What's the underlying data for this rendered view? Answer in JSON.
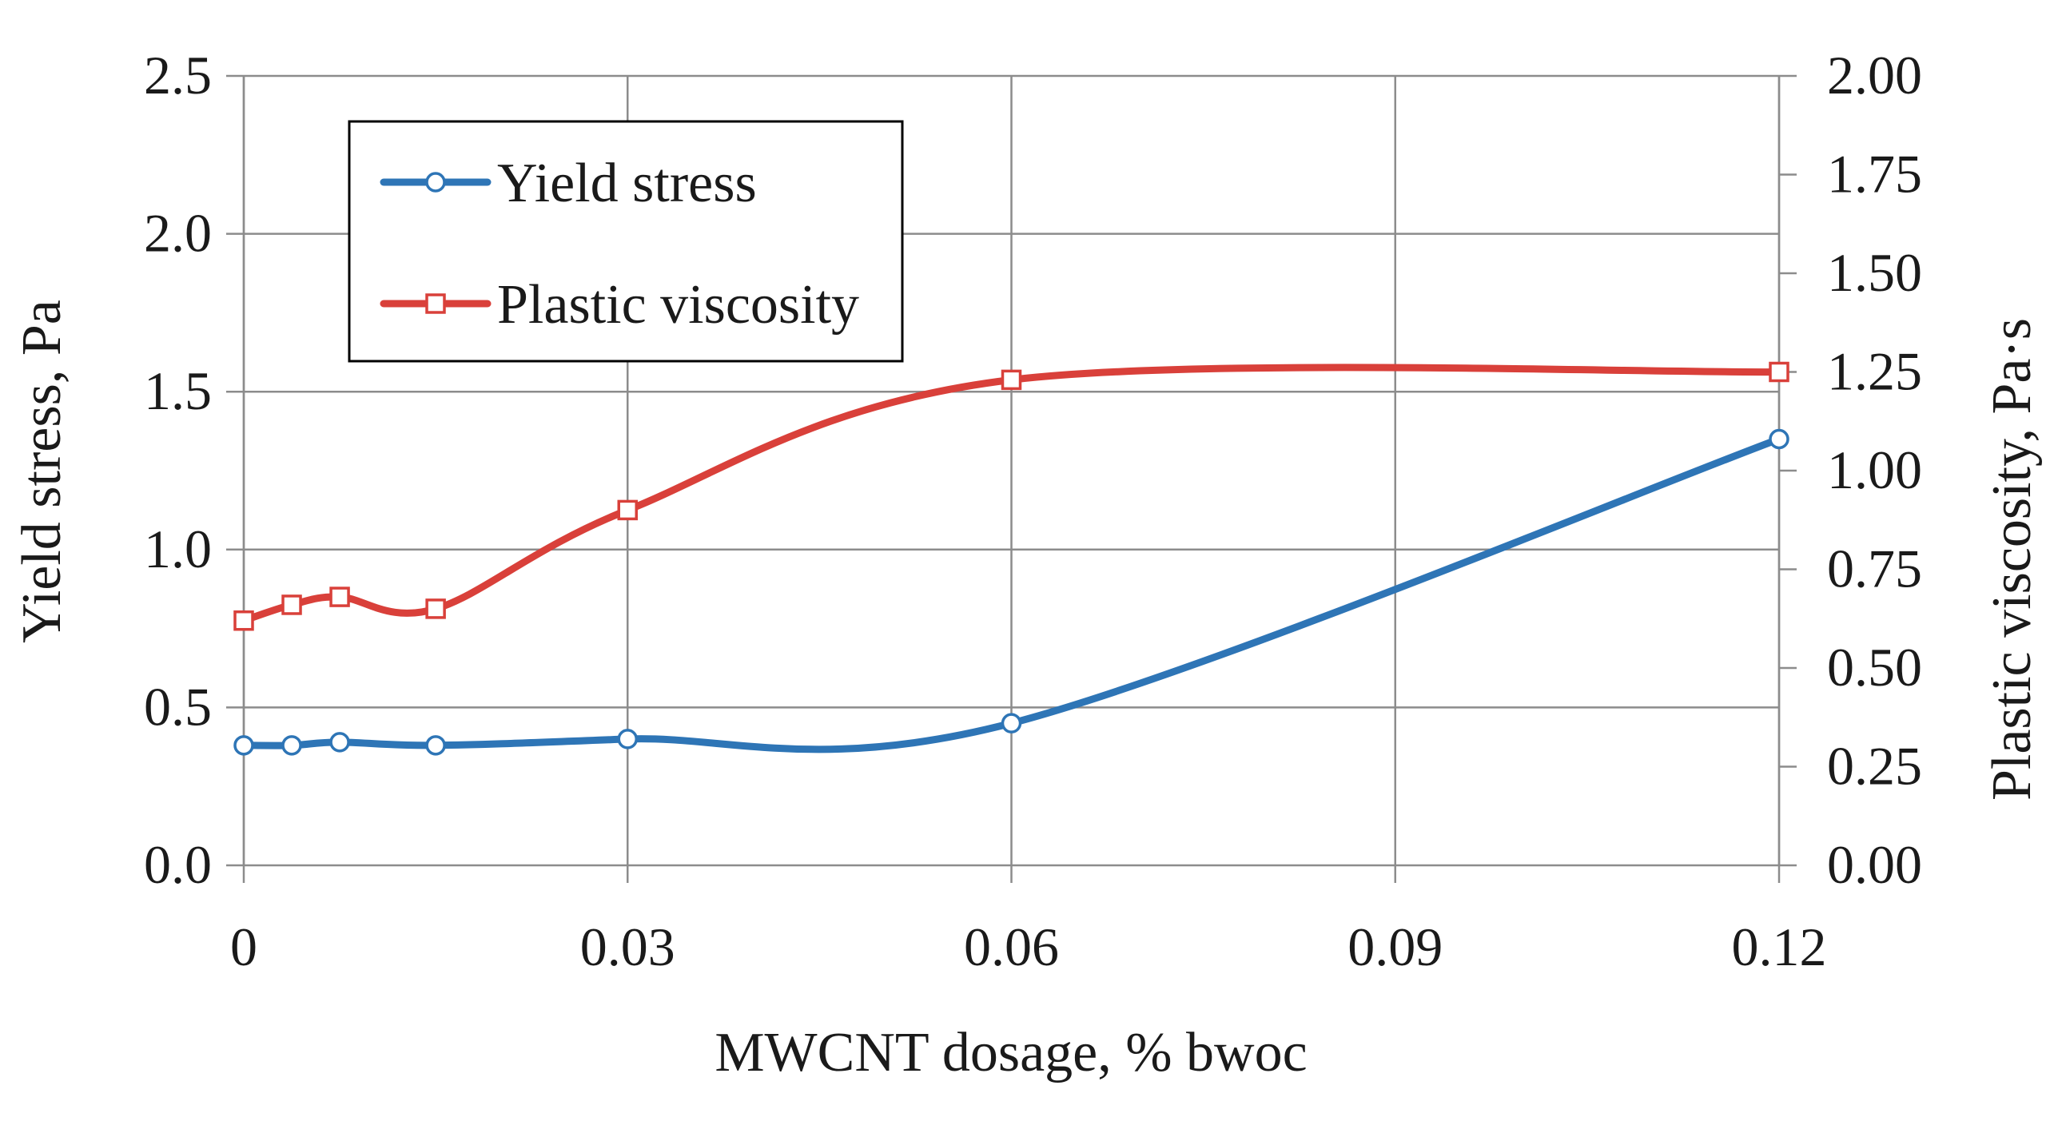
{
  "chart_data": {
    "type": "line",
    "title": "",
    "xlabel": "MWCNT dosage, % bwoc",
    "ylabel": "Yield stress, Pa",
    "y2label": "Plastic viscosity, Pa·s",
    "xlim": [
      0,
      0.12
    ],
    "ylim": [
      0,
      2.5
    ],
    "y2lim": [
      0,
      2.0
    ],
    "x_ticks": [
      0,
      0.03,
      0.06,
      0.09,
      0.12
    ],
    "x_tick_labels": [
      "0",
      "0.03",
      "0.06",
      "0.09",
      "0.12"
    ],
    "y_ticks": [
      0,
      0.5,
      1.0,
      1.5,
      2.0,
      2.5
    ],
    "y_tick_labels": [
      "0.0",
      "0.5",
      "1.0",
      "1.5",
      "2.0",
      "2.5"
    ],
    "y2_ticks": [
      0,
      0.25,
      0.5,
      0.75,
      1.0,
      1.25,
      1.5,
      1.75,
      2.0
    ],
    "y2_tick_labels": [
      "0.00",
      "0.25",
      "0.50",
      "0.75",
      "1.00",
      "1.25",
      "1.50",
      "1.75",
      "2.00"
    ],
    "grid": true,
    "legend_position": "top-left",
    "series": [
      {
        "name": "Yield stress",
        "axis": "left",
        "color": "#2E75B6",
        "marker": "circle",
        "x": [
          0,
          0.00375,
          0.0075,
          0.015,
          0.03,
          0.06,
          0.12
        ],
        "y": [
          0.38,
          0.38,
          0.39,
          0.38,
          0.4,
          0.45,
          1.35
        ]
      },
      {
        "name": "Plastic viscosity",
        "axis": "right",
        "color": "#D9403A",
        "marker": "square",
        "x": [
          0,
          0.00375,
          0.0075,
          0.015,
          0.03,
          0.06,
          0.12
        ],
        "y": [
          0.62,
          0.66,
          0.68,
          0.65,
          0.9,
          1.23,
          1.25
        ]
      }
    ]
  }
}
